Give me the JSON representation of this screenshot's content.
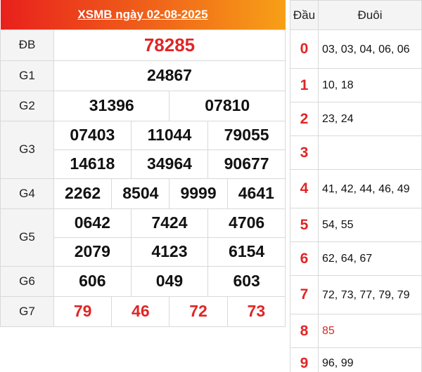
{
  "title": "XSMB ngày 02-08-2025",
  "labels": {
    "db": "ĐB",
    "g1": "G1",
    "g2": "G2",
    "g3": "G3",
    "g4": "G4",
    "g5": "G5",
    "g6": "G6",
    "g7": "G7"
  },
  "prizes": {
    "db": [
      "78285"
    ],
    "g1": [
      "24867"
    ],
    "g2": [
      "31396",
      "07810"
    ],
    "g3": [
      "07403",
      "11044",
      "79055",
      "14618",
      "34964",
      "90677"
    ],
    "g4": [
      "2262",
      "8504",
      "9999",
      "4641"
    ],
    "g5": [
      "0642",
      "7424",
      "4706",
      "2079",
      "4123",
      "6154"
    ],
    "g6": [
      "606",
      "049",
      "603"
    ],
    "g7": [
      "79",
      "46",
      "72",
      "73"
    ]
  },
  "loto": {
    "head_label": "Đầu",
    "tail_label": "Đuôi",
    "rows": [
      {
        "head": "0",
        "tails": "03, 03, 04, 06, 06"
      },
      {
        "head": "1",
        "tails": "10, 18"
      },
      {
        "head": "2",
        "tails": "23, 24"
      },
      {
        "head": "3",
        "tails": ""
      },
      {
        "head": "4",
        "tails": "41, 42, 44, 46, 49"
      },
      {
        "head": "5",
        "tails": "54, 55"
      },
      {
        "head": "6",
        "tails": "62, 64, 67"
      },
      {
        "head": "7",
        "tails": "72, 73, 77, 79, 79"
      },
      {
        "head": "8",
        "tails": "85",
        "highlight": true
      },
      {
        "head": "9",
        "tails": "96, 99"
      }
    ]
  },
  "colors": {
    "accent_red": "#e02525",
    "header_gradient_start": "#e8201c",
    "header_gradient_end": "#f7a017"
  }
}
